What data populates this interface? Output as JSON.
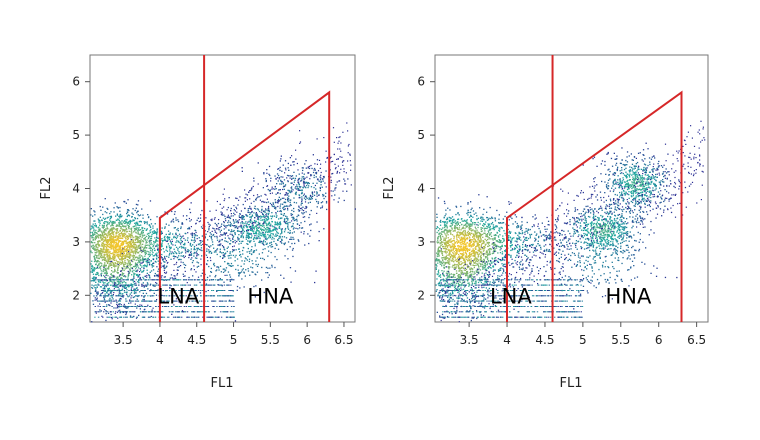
{
  "chart_data": [
    {
      "type": "scatter",
      "style": "density-colored dot plot",
      "xlabel": "FL1",
      "ylabel": "FL2",
      "xlim": [
        3.05,
        6.65
      ],
      "ylim": [
        1.5,
        6.5
      ],
      "x_ticks": [
        "3.5",
        "4",
        "4.5",
        "5",
        "5.5",
        "6",
        "6.5"
      ],
      "y_ticks": [
        "2",
        "3",
        "4",
        "5",
        "6"
      ],
      "regions": [
        {
          "label": "LNA",
          "x": 4.25,
          "y": 1.85
        },
        {
          "label": "HNA",
          "x": 5.5,
          "y": 1.85
        }
      ],
      "gates": [
        {
          "type": "vertical_line",
          "x": 4.6
        },
        {
          "type": "polygon",
          "points": [
            [
              4.0,
              1.5
            ],
            [
              4.0,
              3.45
            ],
            [
              6.3,
              5.8
            ],
            [
              6.3,
              1.5
            ]
          ]
        }
      ],
      "density_clusters": [
        {
          "x": 3.4,
          "y": 3.0,
          "sx": 0.28,
          "sy": 0.3,
          "n": 4500
        },
        {
          "x": 3.4,
          "y": 2.4,
          "sx": 0.3,
          "sy": 0.35,
          "n": 2000
        },
        {
          "x": 4.1,
          "y": 3.0,
          "sx": 0.35,
          "sy": 0.25,
          "n": 1200
        },
        {
          "x": 5.4,
          "y": 3.3,
          "sx": 0.28,
          "sy": 0.22,
          "n": 1800
        },
        {
          "x": 5.0,
          "y": 2.7,
          "sx": 0.4,
          "sy": 0.3,
          "n": 900
        },
        {
          "x": 5.9,
          "y": 4.0,
          "sx": 0.3,
          "sy": 0.25,
          "n": 900
        }
      ],
      "colors": {
        "low": "#2b2f94",
        "mid": "#1fa7a0",
        "high": "#f2c52b",
        "gate": "#d62728"
      }
    },
    {
      "type": "scatter",
      "style": "density-colored dot plot",
      "xlabel": "FL1",
      "ylabel": "FL2",
      "xlim": [
        3.05,
        6.65
      ],
      "ylim": [
        1.5,
        6.5
      ],
      "x_ticks": [
        "3.5",
        "4",
        "4.5",
        "5",
        "5.5",
        "6",
        "6.5"
      ],
      "y_ticks": [
        "2",
        "3",
        "4",
        "5",
        "6"
      ],
      "regions": [
        {
          "label": "LNA",
          "x": 4.05,
          "y": 1.85
        },
        {
          "label": "HNA",
          "x": 5.6,
          "y": 1.85
        }
      ],
      "gates": [
        {
          "type": "vertical_line",
          "x": 4.6
        },
        {
          "type": "polygon",
          "points": [
            [
              4.0,
              1.5
            ],
            [
              4.0,
              3.45
            ],
            [
              6.3,
              5.8
            ],
            [
              6.3,
              1.5
            ]
          ]
        }
      ],
      "density_clusters": [
        {
          "x": 3.4,
          "y": 3.0,
          "sx": 0.3,
          "sy": 0.3,
          "n": 3800
        },
        {
          "x": 3.4,
          "y": 2.4,
          "sx": 0.3,
          "sy": 0.35,
          "n": 2000
        },
        {
          "x": 4.1,
          "y": 3.0,
          "sx": 0.35,
          "sy": 0.25,
          "n": 1000
        },
        {
          "x": 5.25,
          "y": 3.25,
          "sx": 0.25,
          "sy": 0.22,
          "n": 1800
        },
        {
          "x": 5.7,
          "y": 4.1,
          "sx": 0.22,
          "sy": 0.25,
          "n": 1800
        },
        {
          "x": 5.2,
          "y": 2.6,
          "sx": 0.35,
          "sy": 0.3,
          "n": 700
        }
      ],
      "colors": {
        "low": "#2b2f94",
        "mid": "#1fa7a0",
        "high": "#f2c52b",
        "gate": "#d62728"
      }
    }
  ]
}
